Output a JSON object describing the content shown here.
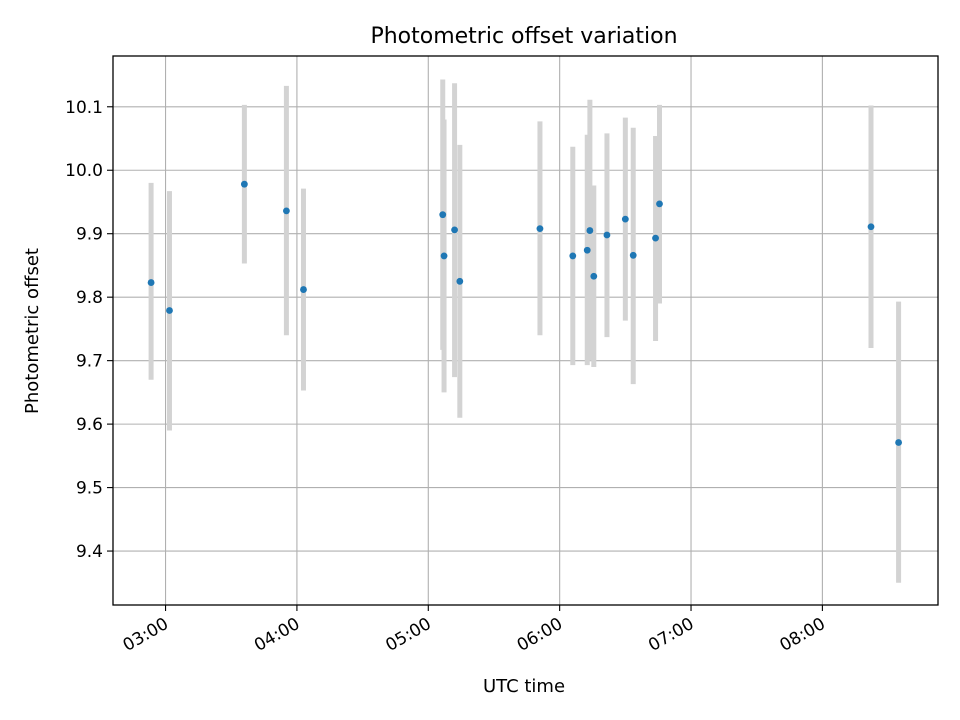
{
  "chart_data": {
    "type": "scatter",
    "title": "Photometric offset variation",
    "xlabel": "UTC time",
    "ylabel": "Photometric offset",
    "grid": true,
    "x_unit": "hours (UTC)",
    "xlim": [
      2.6,
      8.88
    ],
    "ylim": [
      9.315,
      10.18
    ],
    "x_ticks": [
      {
        "value": 3.0,
        "label": "03:00"
      },
      {
        "value": 4.0,
        "label": "04:00"
      },
      {
        "value": 5.0,
        "label": "05:00"
      },
      {
        "value": 6.0,
        "label": "06:00"
      },
      {
        "value": 7.0,
        "label": "07:00"
      },
      {
        "value": 8.0,
        "label": "08:00"
      }
    ],
    "y_ticks": [
      {
        "value": 9.4,
        "label": "9.4"
      },
      {
        "value": 9.5,
        "label": "9.5"
      },
      {
        "value": 9.6,
        "label": "9.6"
      },
      {
        "value": 9.7,
        "label": "9.7"
      },
      {
        "value": 9.8,
        "label": "9.8"
      },
      {
        "value": 9.9,
        "label": "9.9"
      },
      {
        "value": 10.0,
        "label": "10.0"
      },
      {
        "value": 10.1,
        "label": "10.1"
      }
    ],
    "marker_color": "#1f77b4",
    "errorbar_color": "#d3d3d3",
    "points": [
      {
        "x": 2.89,
        "y": 9.823,
        "lo": 9.67,
        "hi": 9.98
      },
      {
        "x": 3.03,
        "y": 9.779,
        "lo": 9.59,
        "hi": 9.967
      },
      {
        "x": 3.6,
        "y": 9.978,
        "lo": 9.853,
        "hi": 10.103
      },
      {
        "x": 3.92,
        "y": 9.936,
        "lo": 9.74,
        "hi": 10.133
      },
      {
        "x": 4.05,
        "y": 9.812,
        "lo": 9.653,
        "hi": 9.971
      },
      {
        "x": 5.11,
        "y": 9.93,
        "lo": 9.717,
        "hi": 10.143
      },
      {
        "x": 5.12,
        "y": 9.865,
        "lo": 9.65,
        "hi": 10.08
      },
      {
        "x": 5.2,
        "y": 9.906,
        "lo": 9.674,
        "hi": 10.137
      },
      {
        "x": 5.24,
        "y": 9.825,
        "lo": 9.61,
        "hi": 10.04
      },
      {
        "x": 5.85,
        "y": 9.908,
        "lo": 9.74,
        "hi": 10.077
      },
      {
        "x": 6.1,
        "y": 9.865,
        "lo": 9.693,
        "hi": 10.037
      },
      {
        "x": 6.21,
        "y": 9.874,
        "lo": 9.693,
        "hi": 10.056
      },
      {
        "x": 6.23,
        "y": 9.905,
        "lo": 9.7,
        "hi": 10.111
      },
      {
        "x": 6.26,
        "y": 9.833,
        "lo": 9.69,
        "hi": 9.976
      },
      {
        "x": 6.36,
        "y": 9.898,
        "lo": 9.737,
        "hi": 10.058
      },
      {
        "x": 6.5,
        "y": 9.923,
        "lo": 9.763,
        "hi": 10.083
      },
      {
        "x": 6.56,
        "y": 9.866,
        "lo": 9.663,
        "hi": 10.067
      },
      {
        "x": 6.73,
        "y": 9.893,
        "lo": 9.731,
        "hi": 10.054
      },
      {
        "x": 6.76,
        "y": 9.947,
        "lo": 9.79,
        "hi": 10.103
      },
      {
        "x": 8.37,
        "y": 9.911,
        "lo": 9.72,
        "hi": 10.102
      },
      {
        "x": 8.58,
        "y": 9.571,
        "lo": 9.35,
        "hi": 9.793
      }
    ]
  }
}
